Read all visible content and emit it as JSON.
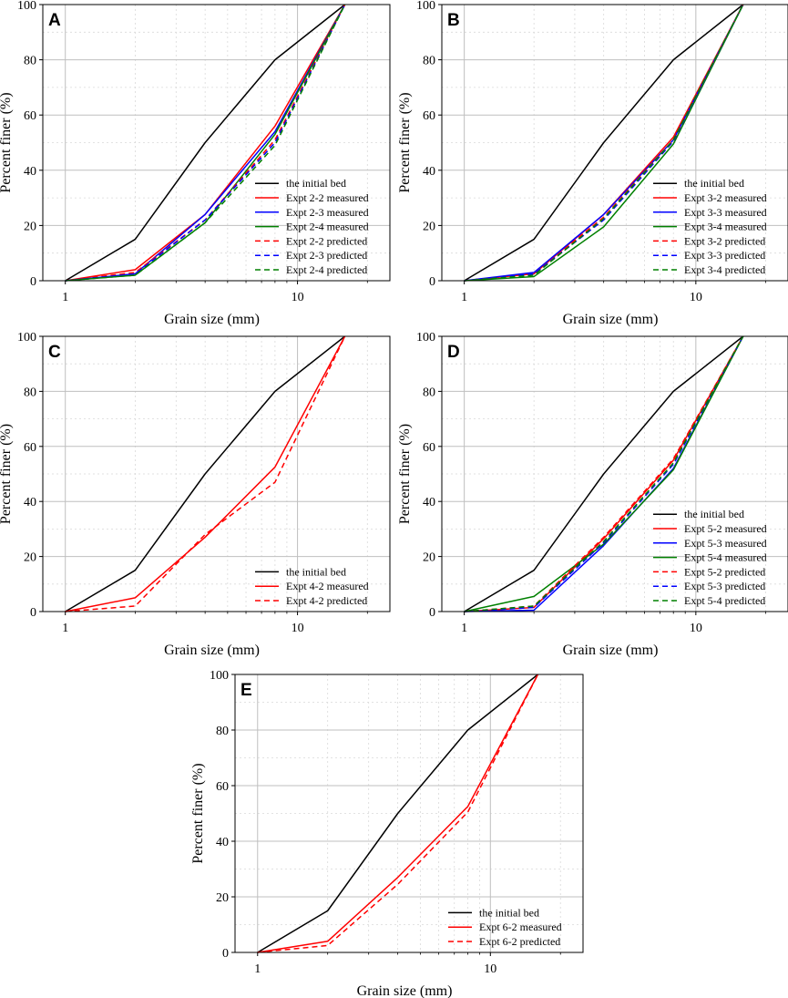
{
  "chart_data": [
    {
      "type": "line",
      "panel": "A",
      "xscale": "log",
      "xlim": [
        0.8,
        25
      ],
      "ylim": [
        0,
        100
      ],
      "xticks": [
        {
          "value": 1,
          "label": "1"
        },
        {
          "value": 10,
          "label": "10"
        }
      ],
      "yticks": [
        0,
        20,
        40,
        60,
        80,
        100
      ],
      "xlabel": "Grain size (mm)",
      "ylabel": "Percent finer (%)",
      "grid": true,
      "legend_position": "bottom-right",
      "series": [
        {
          "name": "the initial bed",
          "color": "#000000",
          "style": "solid",
          "x": [
            1,
            2,
            4,
            8,
            16
          ],
          "y": [
            0,
            15,
            50,
            80,
            100
          ]
        },
        {
          "name": "Expt 2-2 measured",
          "color": "#ff0000",
          "style": "solid",
          "x": [
            1,
            2,
            4,
            8,
            16
          ],
          "y": [
            0,
            4,
            24,
            56,
            100
          ]
        },
        {
          "name": "Expt 2-3 measured",
          "color": "#0000ff",
          "style": "solid",
          "x": [
            1,
            2,
            4,
            8,
            16
          ],
          "y": [
            0,
            2.5,
            24,
            54,
            100
          ]
        },
        {
          "name": "Expt 2-4 measured",
          "color": "#008000",
          "style": "solid",
          "x": [
            1,
            2,
            4,
            8,
            16
          ],
          "y": [
            0,
            2,
            21,
            53,
            100
          ]
        },
        {
          "name": "Expt 2-2 predicted",
          "color": "#ff0000",
          "style": "dashed",
          "x": [
            1,
            2,
            4,
            8,
            16
          ],
          "y": [
            0,
            3,
            22,
            51,
            100
          ]
        },
        {
          "name": "Expt 2-3 predicted",
          "color": "#0000ff",
          "style": "dashed",
          "x": [
            1,
            2,
            4,
            8,
            16
          ],
          "y": [
            0,
            2.5,
            22,
            50,
            100
          ]
        },
        {
          "name": "Expt 2-4 predicted",
          "color": "#008000",
          "style": "dashed",
          "x": [
            1,
            2,
            4,
            8,
            16
          ],
          "y": [
            0,
            2,
            21,
            49,
            100
          ]
        }
      ]
    },
    {
      "type": "line",
      "panel": "B",
      "xscale": "log",
      "xlim": [
        0.8,
        25
      ],
      "ylim": [
        0,
        100
      ],
      "xticks": [
        {
          "value": 1,
          "label": "1"
        },
        {
          "value": 10,
          "label": "10"
        }
      ],
      "yticks": [
        0,
        20,
        40,
        60,
        80,
        100
      ],
      "xlabel": "Grain size (mm)",
      "ylabel": "Percent finer (%)",
      "grid": true,
      "legend_position": "bottom-right",
      "series": [
        {
          "name": "the initial bed",
          "color": "#000000",
          "style": "solid",
          "x": [
            1,
            2,
            4,
            8,
            16
          ],
          "y": [
            0,
            15,
            50,
            80,
            100
          ]
        },
        {
          "name": "Expt 3-2 measured",
          "color": "#ff0000",
          "style": "solid",
          "x": [
            1,
            2,
            4,
            8,
            16
          ],
          "y": [
            0,
            2.5,
            24,
            52,
            100
          ]
        },
        {
          "name": "Expt 3-3 measured",
          "color": "#0000ff",
          "style": "solid",
          "x": [
            1,
            2,
            4,
            8,
            16
          ],
          "y": [
            0,
            3,
            24,
            51,
            100
          ]
        },
        {
          "name": "Expt 3-4 measured",
          "color": "#008000",
          "style": "solid",
          "x": [
            1,
            2,
            4,
            8,
            16
          ],
          "y": [
            0,
            1.5,
            19.5,
            49.5,
            100
          ]
        },
        {
          "name": "Expt 3-2 predicted",
          "color": "#ff0000",
          "style": "dashed",
          "x": [
            1,
            2,
            4,
            8,
            16
          ],
          "y": [
            0,
            2.5,
            23,
            51,
            100
          ]
        },
        {
          "name": "Expt 3-3 predicted",
          "color": "#0000ff",
          "style": "dashed",
          "x": [
            1,
            2,
            4,
            8,
            16
          ],
          "y": [
            0,
            2.5,
            22,
            50.5,
            100
          ]
        },
        {
          "name": "Expt 3-4 predicted",
          "color": "#008000",
          "style": "dashed",
          "x": [
            1,
            2,
            4,
            8,
            16
          ],
          "y": [
            0,
            2,
            22.5,
            51,
            100
          ]
        }
      ]
    },
    {
      "type": "line",
      "panel": "C",
      "xscale": "log",
      "xlim": [
        0.8,
        25
      ],
      "ylim": [
        0,
        100
      ],
      "xticks": [
        {
          "value": 1,
          "label": "1"
        },
        {
          "value": 10,
          "label": "10"
        }
      ],
      "yticks": [
        0,
        20,
        40,
        60,
        80,
        100
      ],
      "xlabel": "Grain size (mm)",
      "ylabel": "Percent finer (%)",
      "grid": true,
      "legend_position": "bottom-right",
      "series": [
        {
          "name": "the initial bed",
          "color": "#000000",
          "style": "solid",
          "x": [
            1,
            2,
            4,
            8,
            16
          ],
          "y": [
            0,
            15,
            50,
            80,
            100
          ]
        },
        {
          "name": "Expt 4-2 measured",
          "color": "#ff0000",
          "style": "solid",
          "x": [
            1,
            2,
            4,
            8,
            16
          ],
          "y": [
            0,
            5,
            27,
            52.5,
            100
          ]
        },
        {
          "name": "Expt 4-2 predicted",
          "color": "#ff0000",
          "style": "dashed",
          "x": [
            1,
            2,
            4,
            8,
            16
          ],
          "y": [
            0,
            2,
            28,
            47,
            100
          ]
        }
      ]
    },
    {
      "type": "line",
      "panel": "D",
      "xscale": "log",
      "xlim": [
        0.8,
        25
      ],
      "ylim": [
        0,
        100
      ],
      "xticks": [
        {
          "value": 1,
          "label": "1"
        },
        {
          "value": 10,
          "label": "10"
        }
      ],
      "yticks": [
        0,
        20,
        40,
        60,
        80,
        100
      ],
      "xlabel": "Grain size (mm)",
      "ylabel": "Percent finer (%)",
      "grid": true,
      "legend_position": "bottom-right",
      "series": [
        {
          "name": "the initial bed",
          "color": "#000000",
          "style": "solid",
          "x": [
            1,
            2,
            4,
            8,
            16
          ],
          "y": [
            0,
            15,
            50,
            80,
            100
          ]
        },
        {
          "name": "Expt 5-2 measured",
          "color": "#ff0000",
          "style": "solid",
          "x": [
            1,
            2,
            4,
            8,
            16
          ],
          "y": [
            0,
            1.5,
            26.5,
            55,
            100
          ]
        },
        {
          "name": "Expt 5-3 measured",
          "color": "#0000ff",
          "style": "solid",
          "x": [
            1,
            2,
            4,
            8,
            16
          ],
          "y": [
            0,
            0.5,
            24,
            52,
            100
          ]
        },
        {
          "name": "Expt 5-4 measured",
          "color": "#008000",
          "style": "solid",
          "x": [
            1,
            2,
            4,
            8,
            16
          ],
          "y": [
            0,
            5.5,
            24.5,
            51.5,
            100
          ]
        },
        {
          "name": "Expt 5-2 predicted",
          "color": "#ff0000",
          "style": "dashed",
          "x": [
            1,
            2,
            4,
            8,
            16
          ],
          "y": [
            0,
            2,
            27,
            55.5,
            100
          ]
        },
        {
          "name": "Expt 5-3 predicted",
          "color": "#0000ff",
          "style": "dashed",
          "x": [
            1,
            2,
            4,
            8,
            16
          ],
          "y": [
            0,
            1.5,
            25,
            53.5,
            100
          ]
        },
        {
          "name": "Expt 5-4 predicted",
          "color": "#008000",
          "style": "dashed",
          "x": [
            1,
            2,
            4,
            8,
            16
          ],
          "y": [
            0,
            2,
            25.5,
            54,
            100
          ]
        }
      ]
    },
    {
      "type": "line",
      "panel": "E",
      "xscale": "log",
      "xlim": [
        0.8,
        25
      ],
      "ylim": [
        0,
        100
      ],
      "xticks": [
        {
          "value": 1,
          "label": "1"
        },
        {
          "value": 10,
          "label": "10"
        }
      ],
      "yticks": [
        0,
        20,
        40,
        60,
        80,
        100
      ],
      "xlabel": "Grain size (mm)",
      "ylabel": "Percent finer (%)",
      "grid": true,
      "legend_position": "bottom-right",
      "series": [
        {
          "name": "the initial bed",
          "color": "#000000",
          "style": "solid",
          "x": [
            1,
            2,
            4,
            8,
            16
          ],
          "y": [
            0,
            15,
            50,
            80,
            100
          ]
        },
        {
          "name": "Expt 6-2 measured",
          "color": "#ff0000",
          "style": "solid",
          "x": [
            1,
            2,
            4,
            8,
            16
          ],
          "y": [
            0,
            4,
            27,
            52.5,
            100
          ]
        },
        {
          "name": "Expt 6-2 predicted",
          "color": "#ff0000",
          "style": "dashed",
          "x": [
            1,
            2,
            4,
            8,
            16
          ],
          "y": [
            0,
            2.5,
            24.5,
            50.5,
            100
          ]
        }
      ]
    }
  ]
}
